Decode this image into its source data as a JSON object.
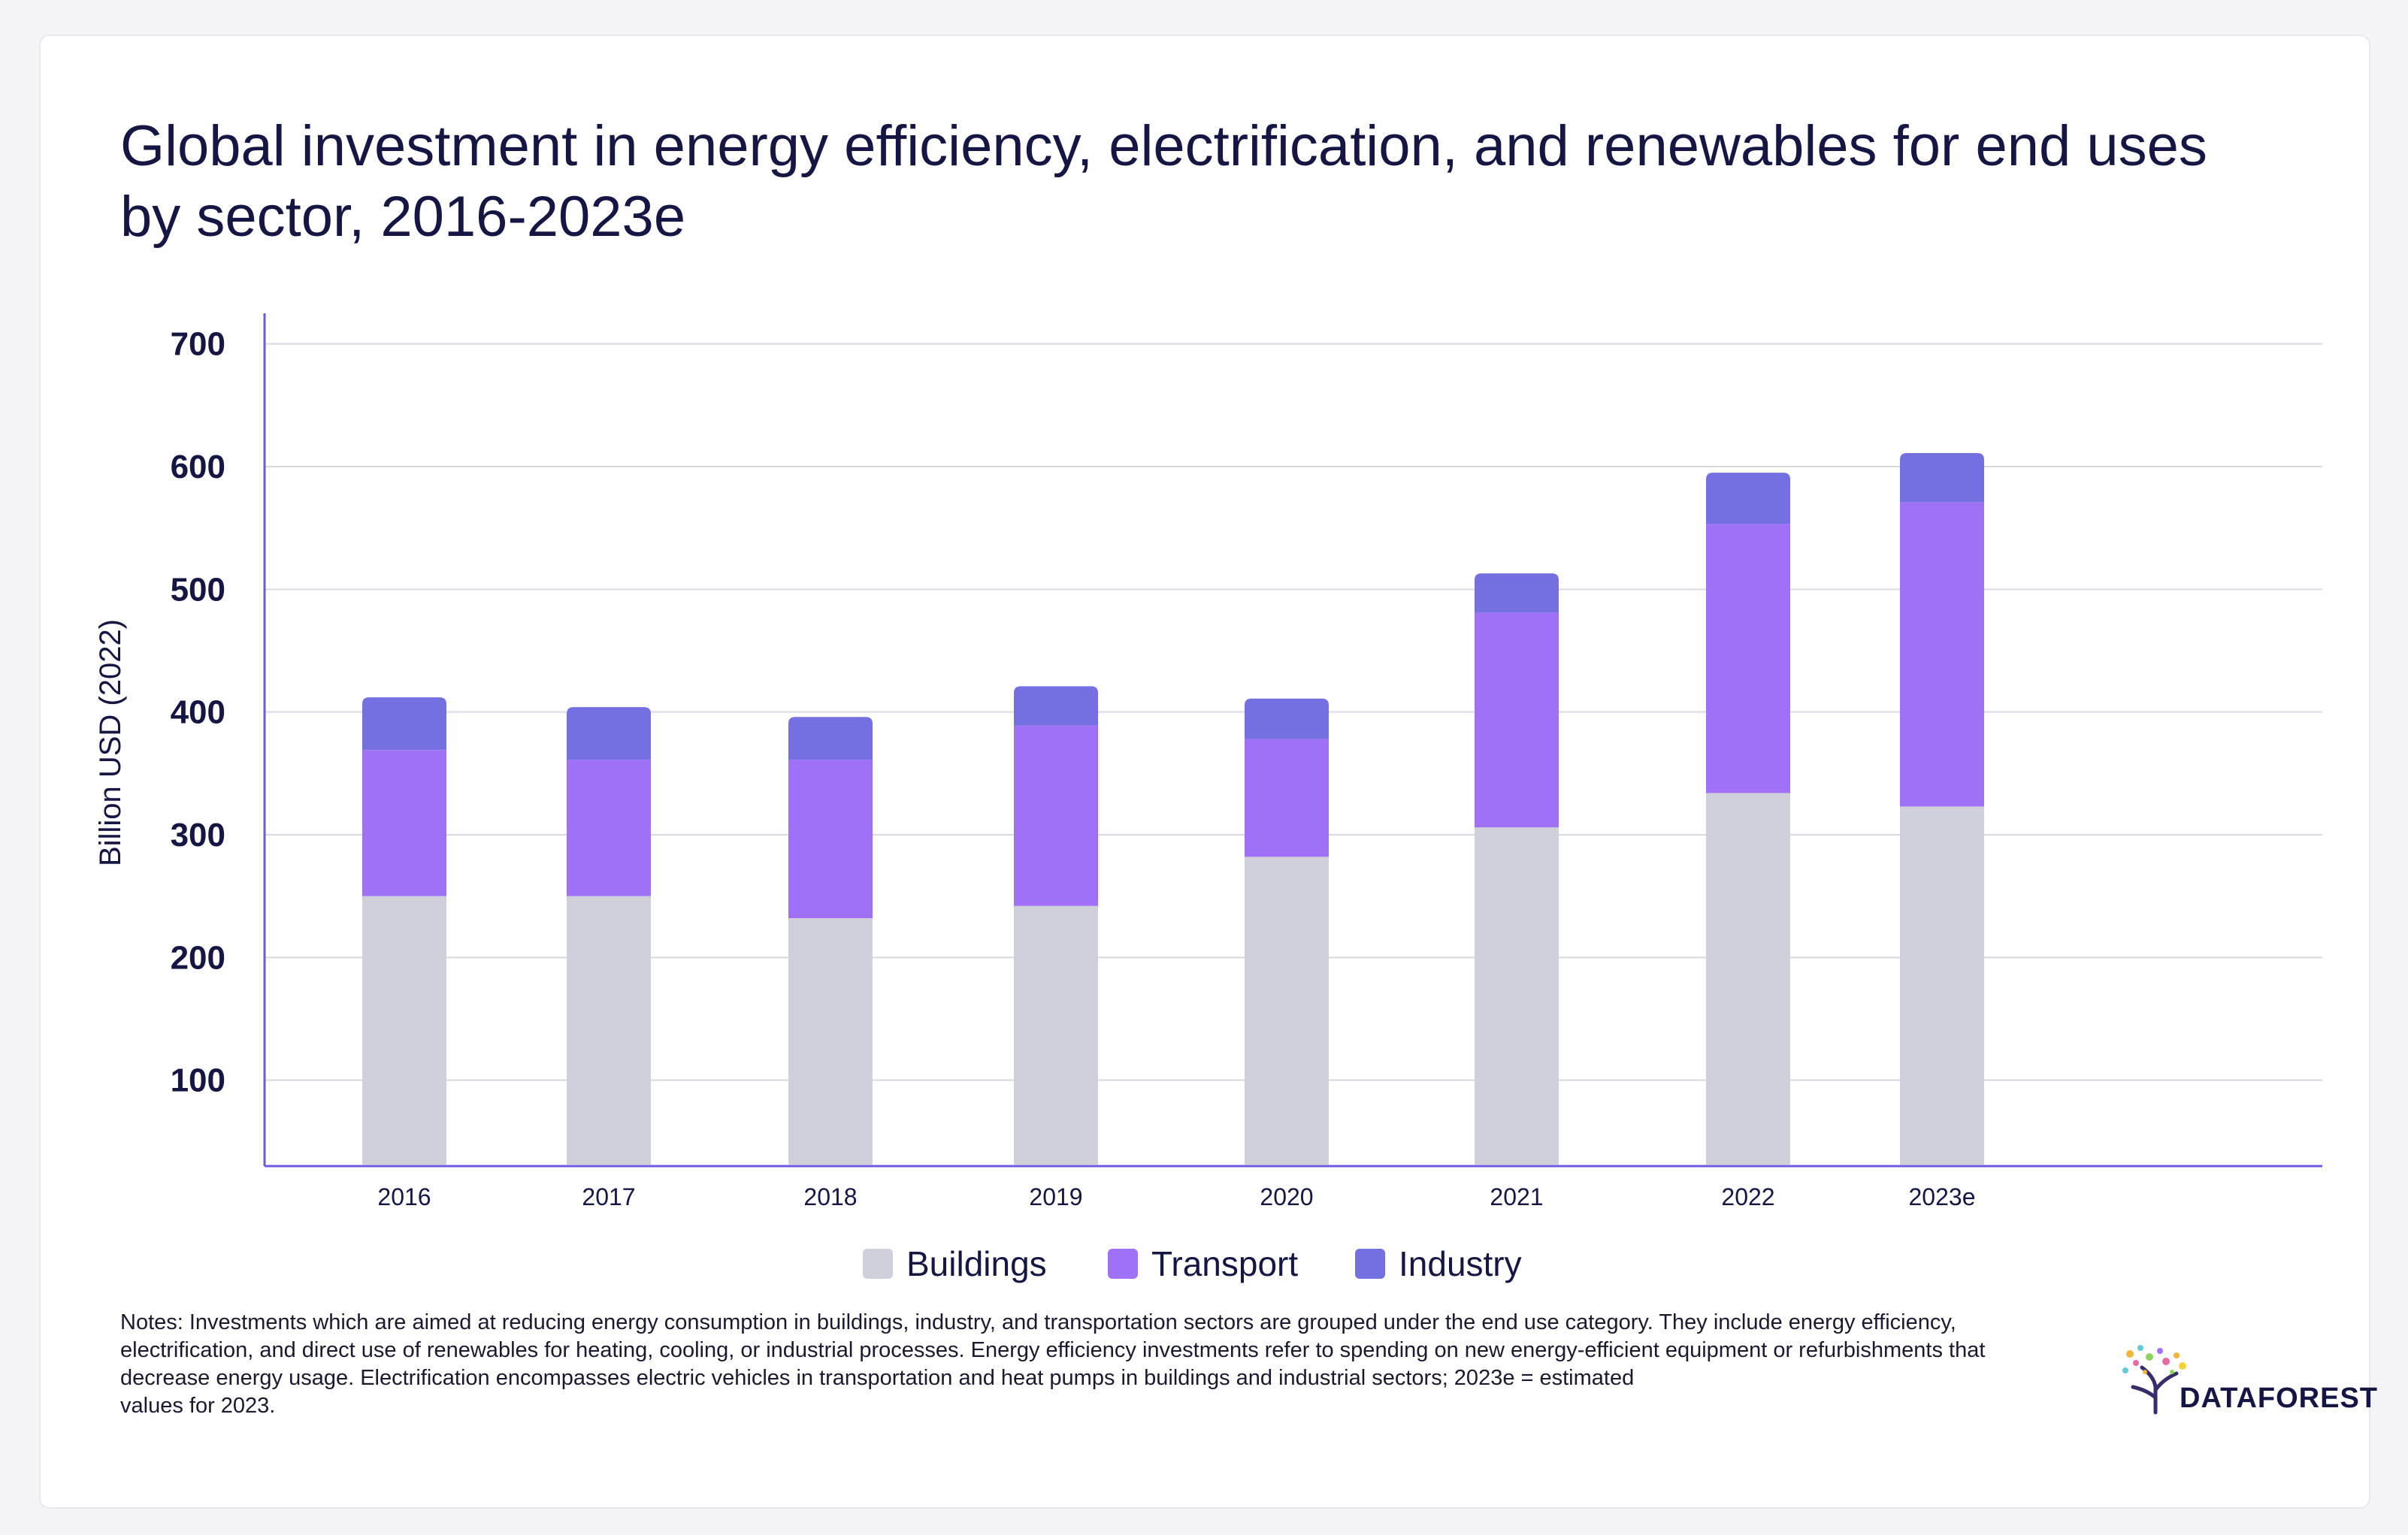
{
  "title": "Global investment in energy efficiency, electrification, and renewables for end uses by sector, 2016-2023e",
  "chart_data": {
    "type": "bar",
    "stacked": true,
    "title": "Global investment in energy efficiency, electrification, and renewables for end uses by sector, 2016-2023e",
    "xlabel": "",
    "ylabel": "Billion USD (2022)",
    "ylim": [
      30,
      720
    ],
    "yticks": [
      100,
      200,
      300,
      400,
      500,
      600,
      700
    ],
    "grid": true,
    "legend_position": "bottom",
    "categories": [
      "2016",
      "2017",
      "2018",
      "2019",
      "2020",
      "2021",
      "2022",
      "2023e"
    ],
    "series": [
      {
        "name": "Buildings",
        "color": "#d0d0da",
        "values": [
          250,
          250,
          232,
          242,
          282,
          306,
          334,
          323
        ]
      },
      {
        "name": "Transport",
        "color": "#a070f7",
        "values": [
          119,
          111,
          129,
          147,
          96,
          175,
          219,
          248
        ]
      },
      {
        "name": "Industry",
        "color": "#7570e2",
        "values": [
          43,
          43,
          35,
          32,
          33,
          32,
          42,
          40
        ]
      }
    ]
  },
  "notes": {
    "line1": "Notes: Investments which are aimed at reducing energy consumption in buildings, industry, and transportation sectors are grouped under the end use category. They include energy efficiency, electrification, and direct use of renewables for heating, cooling, or industrial processes. Energy efficiency investments refer to spending on new energy-efficient equipment or refurbishments that decrease energy usage. Electrification encompasses electric vehicles in transportation and heat pumps in buildings and industrial sectors; 2023e = estimated",
    "line2": "values for 2023."
  },
  "logo": {
    "text": "DATAFOREST"
  },
  "colors": {
    "axis": "#6b5be0",
    "grid": "#d9d9e2",
    "text": "#161644"
  }
}
